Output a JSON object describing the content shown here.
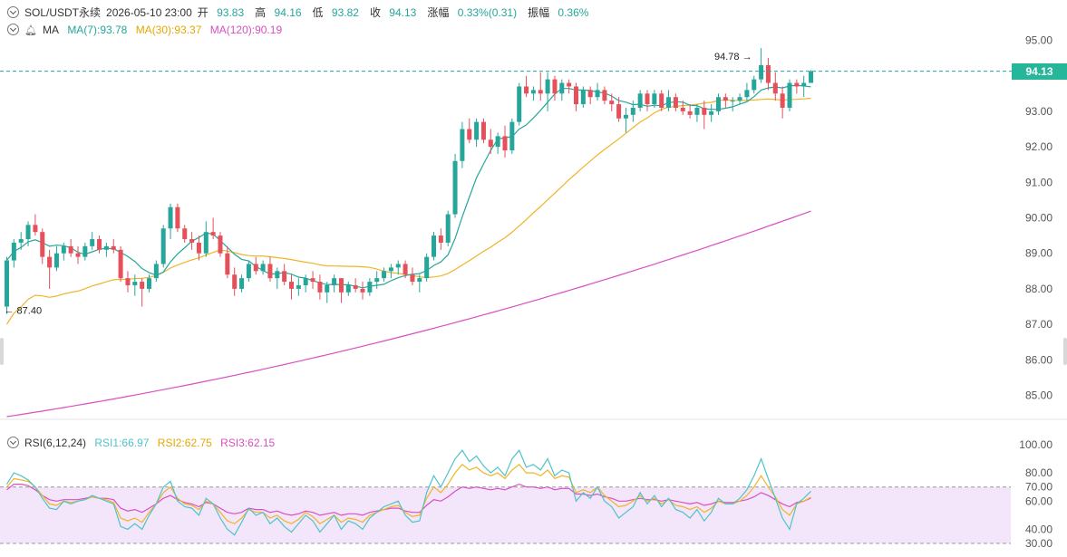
{
  "header": {
    "symbol": "SOL/USDT永续",
    "datetime": "2026-05-10 23:00",
    "open_label": "开",
    "open": "93.83",
    "high_label": "高",
    "high": "94.16",
    "low_label": "低",
    "low": "93.82",
    "close_label": "收",
    "close": "94.13",
    "change_label": "涨幅",
    "change": "0.33%(0.31)",
    "amplitude_label": "振幅",
    "amplitude": "0.36%"
  },
  "ma_legend": {
    "label": "MA",
    "ma7": "MA(7):93.78",
    "ma30": "MA(30):93.37",
    "ma120": "MA(120):90.19"
  },
  "rsi_legend": {
    "label": "RSI(6,12,24)",
    "rsi1": "RSI1:66.97",
    "rsi2": "RSI2:62.75",
    "rsi3": "RSI3:62.15"
  },
  "current_price_tag": "94.13",
  "colors": {
    "up": "#26a69a",
    "down": "#e5505a",
    "ma7": "#26a69a",
    "ma30": "#f0b429",
    "ma120": "#d94fc0",
    "rsi1": "#4fc3c8",
    "rsi2": "#f0b429",
    "rsi3": "#d94fc0",
    "rsi_band": "#f3e6fb"
  },
  "chart_data": [
    {
      "type": "candlestick",
      "y_ticks": [
        "95.00",
        "94.00",
        "93.00",
        "92.00",
        "91.00",
        "90.00",
        "89.00",
        "88.00",
        "87.00",
        "86.00",
        "85.00"
      ],
      "ylim": [
        84.6,
        95.4
      ],
      "annotations": {
        "high": "94.78",
        "low": "87.40"
      },
      "current_price": 94.13,
      "candles": [
        [
          87.5,
          88.9,
          87.3,
          88.8
        ],
        [
          88.8,
          89.4,
          88.6,
          89.3
        ],
        [
          89.3,
          89.6,
          89.1,
          89.4
        ],
        [
          89.4,
          89.9,
          89.2,
          89.8
        ],
        [
          89.8,
          90.1,
          89.5,
          89.6
        ],
        [
          89.6,
          89.7,
          88.7,
          88.9
        ],
        [
          88.9,
          89.1,
          88.0,
          88.6
        ],
        [
          88.6,
          89.2,
          88.5,
          89.0
        ],
        [
          89.0,
          89.3,
          88.8,
          89.2
        ],
        [
          89.2,
          89.4,
          88.9,
          89.0
        ],
        [
          89.0,
          89.2,
          88.7,
          88.9
        ],
        [
          88.9,
          89.3,
          88.8,
          89.2
        ],
        [
          89.2,
          89.6,
          89.1,
          89.4
        ],
        [
          89.4,
          89.5,
          89.0,
          89.1
        ],
        [
          89.1,
          89.3,
          88.9,
          89.2
        ],
        [
          89.2,
          89.4,
          89.0,
          89.1
        ],
        [
          89.1,
          89.2,
          88.2,
          88.3
        ],
        [
          88.3,
          88.5,
          87.9,
          88.1
        ],
        [
          88.1,
          88.4,
          87.8,
          88.2
        ],
        [
          88.2,
          88.3,
          87.5,
          88.0
        ],
        [
          88.0,
          88.4,
          87.9,
          88.3
        ],
        [
          88.3,
          88.8,
          88.2,
          88.7
        ],
        [
          88.7,
          89.8,
          88.6,
          89.7
        ],
        [
          89.7,
          90.4,
          89.4,
          90.3
        ],
        [
          90.3,
          90.4,
          89.6,
          89.7
        ],
        [
          89.7,
          89.8,
          89.3,
          89.4
        ],
        [
          89.4,
          89.6,
          89.1,
          89.3
        ],
        [
          89.3,
          89.5,
          88.8,
          89.0
        ],
        [
          89.0,
          89.9,
          88.9,
          89.6
        ],
        [
          89.6,
          90.0,
          89.4,
          89.5
        ],
        [
          89.5,
          89.6,
          88.9,
          89.0
        ],
        [
          89.0,
          89.2,
          88.3,
          88.4
        ],
        [
          88.4,
          88.6,
          87.8,
          88.0
        ],
        [
          88.0,
          88.4,
          87.9,
          88.3
        ],
        [
          88.3,
          88.8,
          88.2,
          88.7
        ],
        [
          88.7,
          88.9,
          88.4,
          88.5
        ],
        [
          88.5,
          88.8,
          88.4,
          88.7
        ],
        [
          88.7,
          88.9,
          88.2,
          88.3
        ],
        [
          88.3,
          88.6,
          88.0,
          88.5
        ],
        [
          88.5,
          88.7,
          88.1,
          88.2
        ],
        [
          88.2,
          88.4,
          87.7,
          88.0
        ],
        [
          88.0,
          88.3,
          87.8,
          88.1
        ],
        [
          88.1,
          88.4,
          87.9,
          88.3
        ],
        [
          88.3,
          88.5,
          88.0,
          88.2
        ],
        [
          88.2,
          88.4,
          87.7,
          87.9
        ],
        [
          87.9,
          88.2,
          87.6,
          88.1
        ],
        [
          88.1,
          88.4,
          87.9,
          88.3
        ],
        [
          88.3,
          88.3,
          87.6,
          87.9
        ],
        [
          87.9,
          88.2,
          87.8,
          88.1
        ],
        [
          88.1,
          88.3,
          87.9,
          88.0
        ],
        [
          88.0,
          88.2,
          87.7,
          87.9
        ],
        [
          87.9,
          88.3,
          87.8,
          88.2
        ],
        [
          88.2,
          88.5,
          88.0,
          88.3
        ],
        [
          88.3,
          88.6,
          88.2,
          88.5
        ],
        [
          88.5,
          88.7,
          88.3,
          88.6
        ],
        [
          88.6,
          88.8,
          88.4,
          88.7
        ],
        [
          88.7,
          88.8,
          88.3,
          88.4
        ],
        [
          88.4,
          88.6,
          88.1,
          88.2
        ],
        [
          88.2,
          88.4,
          87.9,
          88.3
        ],
        [
          88.3,
          89.0,
          88.2,
          88.9
        ],
        [
          88.9,
          89.6,
          88.8,
          89.5
        ],
        [
          89.5,
          89.7,
          89.1,
          89.3
        ],
        [
          89.3,
          90.2,
          89.2,
          90.1
        ],
        [
          90.1,
          91.8,
          90.0,
          91.6
        ],
        [
          91.6,
          92.7,
          91.4,
          92.5
        ],
        [
          92.5,
          92.8,
          92.1,
          92.2
        ],
        [
          92.2,
          92.8,
          92.0,
          92.7
        ],
        [
          92.7,
          92.8,
          92.1,
          92.2
        ],
        [
          92.2,
          92.5,
          91.8,
          92.0
        ],
        [
          92.0,
          92.4,
          91.8,
          92.3
        ],
        [
          92.3,
          92.6,
          91.7,
          91.9
        ],
        [
          91.9,
          92.8,
          91.8,
          92.7
        ],
        [
          92.7,
          93.8,
          92.6,
          93.7
        ],
        [
          93.7,
          94.0,
          93.4,
          93.5
        ],
        [
          93.5,
          93.7,
          93.3,
          93.6
        ],
        [
          93.6,
          94.1,
          93.3,
          93.5
        ],
        [
          93.5,
          94.1,
          93.0,
          93.9
        ],
        [
          93.9,
          94.0,
          93.3,
          93.5
        ],
        [
          93.5,
          93.9,
          93.3,
          93.8
        ],
        [
          93.8,
          93.9,
          93.5,
          93.7
        ],
        [
          93.7,
          93.8,
          93.0,
          93.2
        ],
        [
          93.2,
          93.7,
          93.1,
          93.6
        ],
        [
          93.6,
          93.7,
          93.2,
          93.4
        ],
        [
          93.4,
          93.8,
          93.3,
          93.6
        ],
        [
          93.6,
          93.7,
          93.2,
          93.3
        ],
        [
          93.3,
          93.5,
          93.0,
          93.2
        ],
        [
          93.2,
          93.4,
          92.7,
          92.8
        ],
        [
          92.8,
          93.1,
          92.4,
          92.9
        ],
        [
          92.9,
          93.3,
          92.7,
          93.1
        ],
        [
          93.1,
          93.6,
          93.0,
          93.5
        ],
        [
          93.5,
          93.6,
          93.0,
          93.2
        ],
        [
          93.2,
          93.6,
          93.1,
          93.5
        ],
        [
          93.5,
          93.6,
          93.0,
          93.1
        ],
        [
          93.1,
          93.6,
          93.0,
          93.4
        ],
        [
          93.4,
          93.5,
          93.0,
          93.1
        ],
        [
          93.1,
          93.3,
          92.9,
          93.0
        ],
        [
          93.0,
          93.2,
          92.8,
          92.9
        ],
        [
          92.9,
          93.2,
          92.7,
          93.1
        ],
        [
          93.1,
          93.3,
          92.5,
          92.9
        ],
        [
          92.9,
          93.2,
          92.7,
          93.0
        ],
        [
          93.0,
          93.5,
          92.9,
          93.4
        ],
        [
          93.4,
          93.5,
          93.1,
          93.3
        ],
        [
          93.3,
          93.4,
          93.0,
          93.3
        ],
        [
          93.3,
          93.5,
          93.2,
          93.4
        ],
        [
          93.4,
          93.8,
          93.3,
          93.6
        ],
        [
          93.6,
          94.0,
          93.5,
          93.9
        ],
        [
          93.9,
          94.5,
          93.8,
          94.3
        ],
        [
          94.3,
          94.5,
          93.6,
          93.8
        ],
        [
          93.8,
          94.1,
          93.3,
          93.5
        ],
        [
          93.5,
          93.7,
          92.8,
          93.1
        ],
        [
          93.1,
          93.9,
          93.0,
          93.8
        ],
        [
          93.8,
          93.9,
          93.5,
          93.7
        ],
        [
          93.7,
          94.0,
          93.4,
          93.8
        ],
        [
          93.8,
          94.16,
          93.82,
          94.13
        ]
      ],
      "series": [
        {
          "name": "MA(7)",
          "values_from": "ma7"
        },
        {
          "name": "MA(30)",
          "values_from": "ma30"
        },
        {
          "name": "MA(120)",
          "values_from": "ma120"
        }
      ],
      "ma120_range": [
        84.4,
        90.19
      ]
    },
    {
      "type": "line",
      "y_ticks": [
        "100.00",
        "80.00",
        "70.00",
        "60.00",
        "40.00",
        "30.00"
      ],
      "ylim": [
        28,
        104
      ],
      "band": [
        30,
        70
      ],
      "series": [
        {
          "name": "RSI1",
          "values": [
            72,
            80,
            78,
            75,
            70,
            62,
            55,
            54,
            60,
            58,
            60,
            61,
            64,
            62,
            60,
            58,
            42,
            40,
            44,
            40,
            50,
            58,
            70,
            74,
            60,
            56,
            55,
            50,
            62,
            58,
            48,
            40,
            36,
            45,
            55,
            50,
            52,
            44,
            48,
            42,
            38,
            44,
            50,
            46,
            38,
            44,
            50,
            40,
            46,
            44,
            40,
            48,
            52,
            56,
            58,
            60,
            50,
            45,
            46,
            66,
            78,
            70,
            80,
            90,
            96,
            88,
            92,
            85,
            80,
            84,
            78,
            90,
            96,
            84,
            86,
            82,
            90,
            78,
            82,
            80,
            60,
            66,
            62,
            70,
            60,
            56,
            48,
            52,
            56,
            66,
            58,
            64,
            56,
            62,
            54,
            52,
            48,
            54,
            46,
            52,
            62,
            58,
            58,
            62,
            68,
            78,
            90,
            76,
            62,
            48,
            40,
            58,
            62,
            67
          ]
        },
        {
          "name": "RSI2",
          "values": [
            70,
            76,
            75,
            74,
            70,
            64,
            58,
            57,
            60,
            59,
            60,
            61,
            63,
            62,
            61,
            59,
            48,
            46,
            48,
            45,
            52,
            58,
            66,
            70,
            62,
            58,
            57,
            54,
            60,
            58,
            52,
            46,
            44,
            48,
            54,
            52,
            52,
            48,
            50,
            46,
            44,
            47,
            52,
            49,
            44,
            47,
            50,
            45,
            48,
            47,
            45,
            50,
            52,
            54,
            56,
            57,
            52,
            49,
            50,
            62,
            70,
            66,
            72,
            80,
            86,
            82,
            84,
            80,
            78,
            80,
            76,
            82,
            86,
            80,
            80,
            78,
            82,
            76,
            78,
            77,
            66,
            68,
            66,
            70,
            64,
            60,
            56,
            57,
            60,
            64,
            60,
            62,
            58,
            61,
            57,
            56,
            54,
            56,
            52,
            55,
            60,
            58,
            58,
            60,
            64,
            70,
            78,
            70,
            63,
            54,
            50,
            58,
            60,
            62.75
          ]
        },
        {
          "name": "RSI3",
          "values": [
            68,
            72,
            72,
            71,
            68,
            64,
            61,
            60,
            61,
            61,
            61,
            62,
            63,
            62,
            62,
            61,
            55,
            53,
            54,
            52,
            55,
            58,
            62,
            64,
            61,
            59,
            58,
            56,
            59,
            58,
            55,
            52,
            51,
            52,
            55,
            54,
            54,
            52,
            53,
            51,
            50,
            51,
            53,
            52,
            50,
            51,
            52,
            50,
            51,
            51,
            50,
            52,
            53,
            54,
            55,
            55,
            53,
            52,
            52,
            57,
            61,
            60,
            63,
            67,
            70,
            69,
            70,
            69,
            68,
            69,
            68,
            70,
            72,
            70,
            70,
            69,
            70,
            68,
            69,
            69,
            65,
            65,
            64,
            65,
            63,
            62,
            60,
            60,
            61,
            62,
            61,
            61,
            60,
            61,
            60,
            59,
            58,
            59,
            57,
            58,
            60,
            59,
            59,
            60,
            61,
            63,
            66,
            64,
            61,
            58,
            56,
            59,
            60,
            62.15
          ]
        }
      ]
    }
  ]
}
